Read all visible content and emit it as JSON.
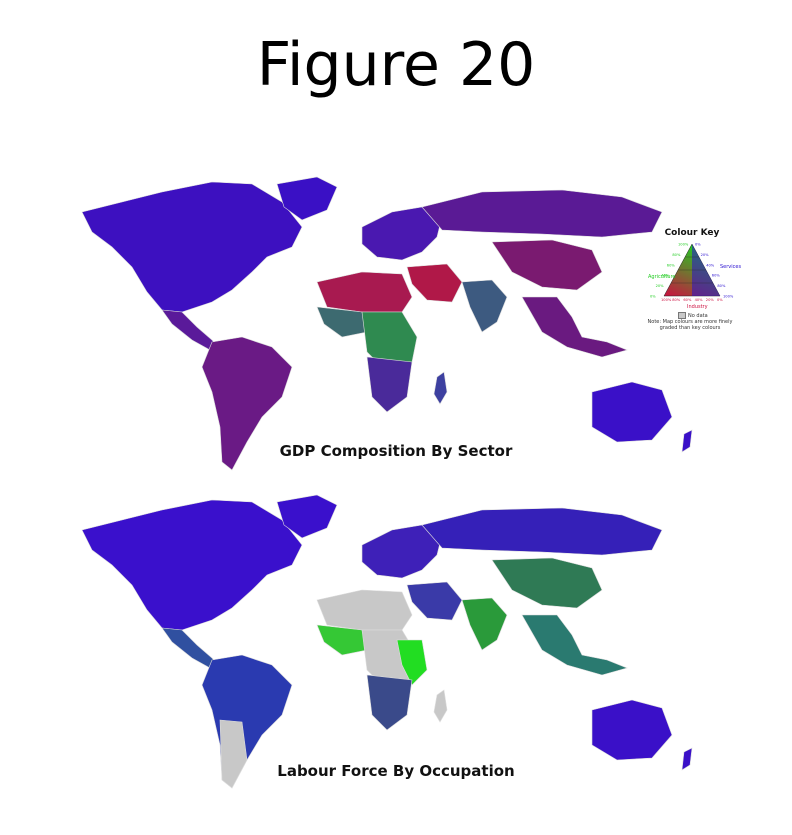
{
  "figure_title": "Figure 20",
  "maps": {
    "gdp_caption": "GDP Composition By Sector",
    "labour_caption": "Labour Force By Occupation"
  },
  "colour_key": {
    "title": "Colour Key",
    "agriculture_label": "Agriculture",
    "services_label": "Services",
    "industry_label": "Industry",
    "no_data_label": "No data",
    "note": "Note: Map colours are more finely graded than key colours",
    "agriculture_ticks": [
      "100%",
      "80%",
      "60%",
      "40%",
      "20%",
      "0%"
    ],
    "services_ticks": [
      "0%",
      "20%",
      "40%",
      "60%",
      "80%",
      "100%"
    ],
    "industry_ticks": [
      "100%",
      "80%",
      "60%",
      "40%",
      "20%",
      "0%"
    ]
  },
  "colors": {
    "agriculture": "#22cc22",
    "services": "#2a10d0",
    "industry": "#cc1040",
    "no_data": "#c8c8c8"
  }
}
